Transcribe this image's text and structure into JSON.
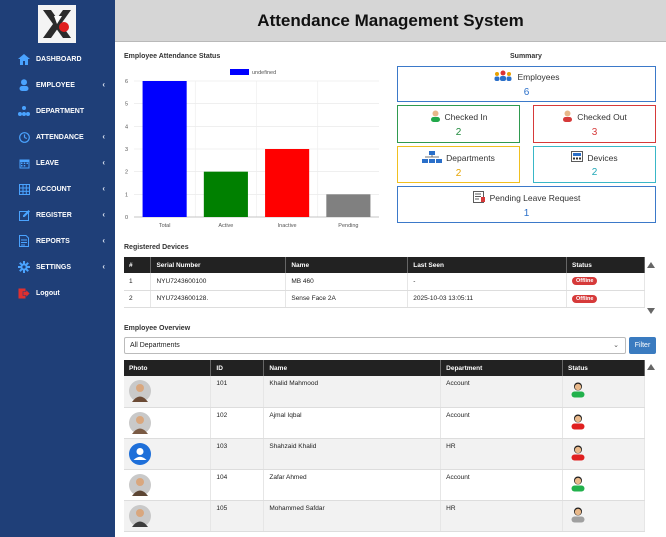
{
  "header": {
    "title": "Attendance Management System"
  },
  "logo": {
    "alt": "company-logo"
  },
  "sidebar": {
    "items": [
      {
        "label": "DASHBOARD",
        "icon": "home-icon",
        "chevron": false
      },
      {
        "label": "EMPLOYEE",
        "icon": "user-icon",
        "chevron": true
      },
      {
        "label": "DEPARTMENT",
        "icon": "org-chart-icon",
        "chevron": false
      },
      {
        "label": "ATTENDANCE",
        "icon": "clock-icon",
        "chevron": true
      },
      {
        "label": "LEAVE",
        "icon": "calendar-icon",
        "chevron": true
      },
      {
        "label": "ACCOUNT",
        "icon": "grid-calculator-icon",
        "chevron": true
      },
      {
        "label": "REGISTER",
        "icon": "pencil-square-icon",
        "chevron": true
      },
      {
        "label": "REPORTS",
        "icon": "document-icon",
        "chevron": true
      },
      {
        "label": "SETTINGS",
        "icon": "gear-icon",
        "chevron": true
      },
      {
        "label": "Logout",
        "icon": "logout-icon",
        "chevron": false
      }
    ]
  },
  "chart_section": {
    "title": "Employee Attendance Status"
  },
  "chart_data": {
    "type": "bar",
    "categories": [
      "Total",
      "Active",
      "Inactive",
      "Pending"
    ],
    "series": [
      {
        "name": "undefined",
        "values": [
          6,
          2,
          3,
          1
        ]
      }
    ],
    "colors": [
      "#0000ff",
      "#008000",
      "#ff0000",
      "#808080"
    ],
    "ylim": [
      0,
      6
    ],
    "yticks": [
      "0",
      "1",
      "2",
      "3",
      "4",
      "5",
      "6"
    ],
    "legend_placement": "top-center",
    "grid": true
  },
  "summary": {
    "title": "Summary",
    "cards": {
      "employees": {
        "label": "Employees",
        "value": "6",
        "color": "#2a6fc9"
      },
      "checked_in": {
        "label": "Checked In",
        "value": "2",
        "color": "#1f8a3c"
      },
      "checked_out": {
        "label": "Checked Out",
        "value": "3",
        "color": "#d63a3a"
      },
      "departments": {
        "label": "Departments",
        "value": "2",
        "color": "#e6a400"
      },
      "devices": {
        "label": "Devices",
        "value": "2",
        "color": "#20a7b7"
      },
      "pending_leave": {
        "label": "Pending Leave Request",
        "value": "1",
        "color": "#2a6fc9"
      }
    }
  },
  "devices": {
    "title": "Registered Devices",
    "columns": [
      "#",
      "Serial Number",
      "Name",
      "Last Seen",
      "Status"
    ],
    "rows": [
      {
        "num": "1",
        "serial": "NYU7243600100",
        "name": "MB 460",
        "last_seen": "-",
        "status": "Offline"
      },
      {
        "num": "2",
        "serial": "NYU7243600128.",
        "name": "Sense Face 2A",
        "last_seen": "2025-10-03 13:05:11",
        "status": "Offline"
      }
    ]
  },
  "overview": {
    "title": "Employee Overview",
    "department_select": "All Departments",
    "filter_label": "Filter",
    "columns": [
      "Photo",
      "ID",
      "Name",
      "Department",
      "Status"
    ],
    "rows": [
      {
        "id": "101",
        "name": "Khalid Mahmood",
        "department": "Account",
        "status_color": "#22b14c",
        "photo": "photo"
      },
      {
        "id": "102",
        "name": "Ajmal Iqbal",
        "department": "Account",
        "status_color": "#e02020",
        "photo": "photo"
      },
      {
        "id": "103",
        "name": "Shahzaid Khalid",
        "department": "HR",
        "status_color": "#e02020",
        "photo": "placeholder"
      },
      {
        "id": "104",
        "name": "Zafar Ahmed",
        "department": "Account",
        "status_color": "#22b14c",
        "photo": "photo"
      },
      {
        "id": "105",
        "name": "Mohammed Safdar",
        "department": "HR",
        "status_color": "#a0a0a0",
        "photo": "photo"
      }
    ]
  }
}
